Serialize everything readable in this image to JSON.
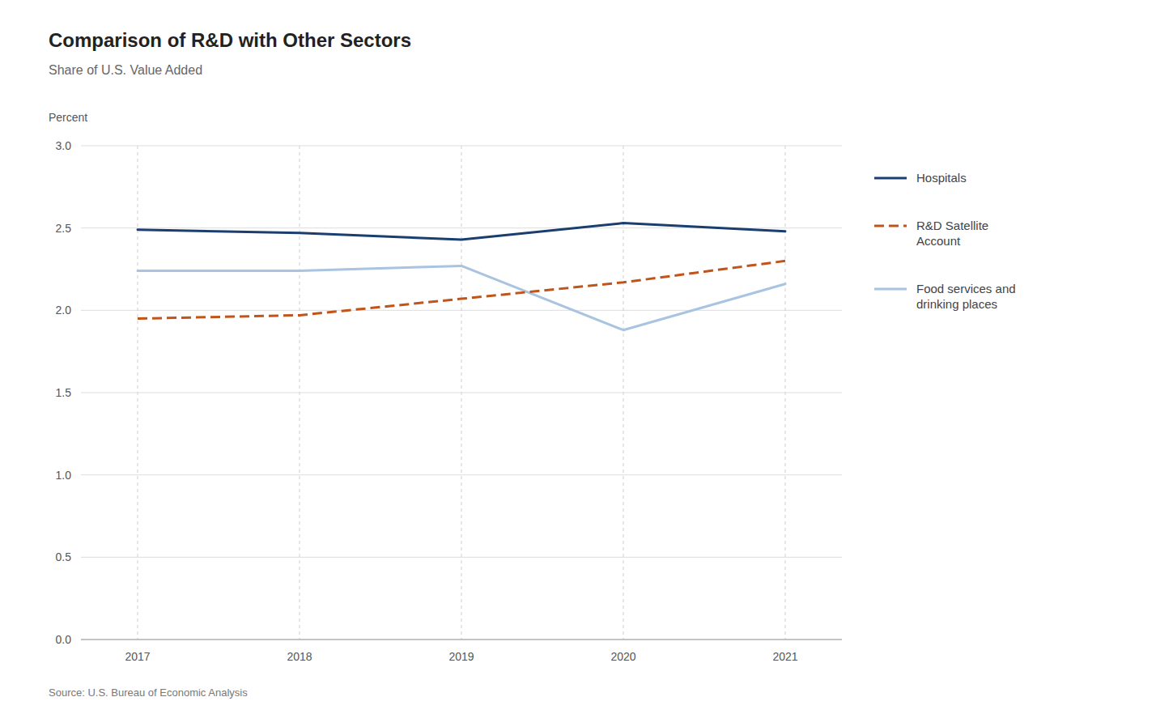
{
  "chart_data": {
    "type": "line",
    "title": "Comparison of R&D with Other Sectors",
    "subtitle": "Share of U.S. Value Added",
    "y_label": "Percent",
    "source": "Source: U.S. Bureau of Economic Analysis",
    "x": [
      2017,
      2018,
      2019,
      2020,
      2021
    ],
    "series": [
      {
        "name": "Hospitals",
        "color": "#1a3e6e",
        "line_style": "solid",
        "values": [
          2.49,
          2.47,
          2.43,
          2.53,
          2.48
        ]
      },
      {
        "name": "R&D Satellite\nAccount",
        "color": "#c0541a",
        "line_style": "dashed",
        "values": [
          1.95,
          1.97,
          2.07,
          2.17,
          2.3
        ]
      },
      {
        "name": "Food services and\ndrinking places",
        "color": "#a8c4e0",
        "line_style": "solid",
        "values": [
          2.24,
          2.24,
          2.27,
          1.88,
          2.16
        ]
      }
    ],
    "xlim": [
      2016.65,
      2021.35
    ],
    "xticks": [
      2017,
      2018,
      2019,
      2020,
      2021
    ],
    "ylim": [
      0.0,
      3.0
    ],
    "yticks": [
      {
        "value": 0.0,
        "label": "0.0"
      },
      0.5,
      {
        "value": 1.0,
        "label": "1.0"
      },
      1.5,
      {
        "value": 2.0,
        "label": "2.0"
      },
      2.5,
      {
        "value": 3.0,
        "label": "3.0"
      }
    ],
    "grid": true,
    "legend": "right"
  }
}
